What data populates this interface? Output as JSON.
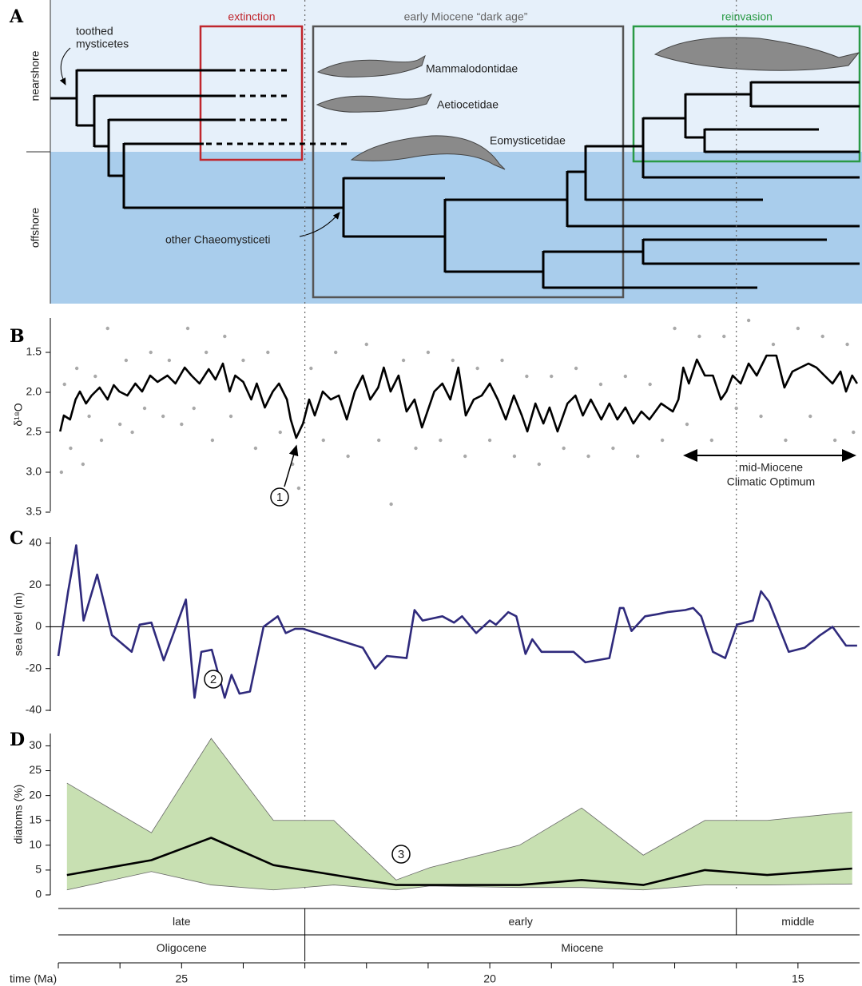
{
  "tree": {
    "label": "A",
    "zones": [
      "nearshore",
      "offshore"
    ],
    "toothed_mysticetes": [
      "toothed",
      "mysticetes"
    ],
    "clades": [
      "Mammalodontidae",
      "Aetiocetidae",
      "Eomysticetidae"
    ],
    "other": "other Chaeomysticeti",
    "boxes": {
      "extinction": "extinction",
      "dark_age": "early Miocene “dark age”",
      "reinvasion": "reinvasion"
    }
  },
  "time_axis": {
    "xlim": [
      27,
      14
    ],
    "xticks": [
      25,
      20,
      15
    ],
    "minor_xticks": [
      27,
      26,
      24,
      23,
      22,
      21,
      19,
      18,
      17,
      16
    ],
    "label": "time (Ma)",
    "stages": [
      {
        "label": "late",
        "range": [
          27,
          23
        ]
      },
      {
        "label": "early",
        "range": [
          23,
          16
        ]
      },
      {
        "label": "middle",
        "range": [
          16,
          14
        ]
      }
    ],
    "epochs": [
      {
        "label": "Oligocene",
        "range": [
          27,
          23
        ]
      },
      {
        "label": "Miocene",
        "range": [
          23,
          14
        ]
      }
    ]
  },
  "chart_data": [
    {
      "type": "scatter",
      "panel_label": "B",
      "y_label": "δ¹⁸O",
      "ylim": [
        1.1,
        3.5
      ],
      "inverted": true,
      "yticks": [
        1.5,
        {
          "value": 2,
          "label": "2.0"
        },
        2.5,
        {
          "value": 3,
          "label": "3.0"
        },
        3.5
      ],
      "annotations": [
        "1"
      ],
      "optimum": [
        "mid-Miocene",
        "Climatic Optimum"
      ],
      "series": [
        {
          "type": "scatter",
          "color": "#a9a9a9",
          "x": [
            26.95,
            26.9,
            26.8,
            26.7,
            26.6,
            26.5,
            26.4,
            26.3,
            26.2,
            26.0,
            25.9,
            25.8,
            25.6,
            25.5,
            25.3,
            25.2,
            25.0,
            24.9,
            24.8,
            24.6,
            24.5,
            24.3,
            24.2,
            24.0,
            23.8,
            23.6,
            23.4,
            23.2,
            23.1,
            22.9,
            22.7,
            22.5,
            22.3,
            22.0,
            21.8,
            21.6,
            21.4,
            21.2,
            21.0,
            20.8,
            20.6,
            20.4,
            20.2,
            20.0,
            19.8,
            19.6,
            19.4,
            19.2,
            19.0,
            18.8,
            18.6,
            18.4,
            18.2,
            18.0,
            17.8,
            17.6,
            17.4,
            17.2,
            17.0,
            16.8,
            16.6,
            16.4,
            16.2,
            16.0,
            15.8,
            15.6,
            15.4,
            15.2,
            15.0,
            14.8,
            14.6,
            14.4,
            14.2,
            14.1
          ],
          "values": [
            3.0,
            1.9,
            2.7,
            1.7,
            2.9,
            2.3,
            1.8,
            2.6,
            1.2,
            2.4,
            1.6,
            2.5,
            2.2,
            1.5,
            2.3,
            1.6,
            2.4,
            1.2,
            2.2,
            1.5,
            2.6,
            1.3,
            2.3,
            1.6,
            2.7,
            1.5,
            2.5,
            2.9,
            3.2,
            1.7,
            2.6,
            1.5,
            2.8,
            1.4,
            2.6,
            3.4,
            1.6,
            2.7,
            1.5,
            2.6,
            1.6,
            2.8,
            1.7,
            2.6,
            1.6,
            2.8,
            1.8,
            2.9,
            1.8,
            2.7,
            1.7,
            2.8,
            1.9,
            2.7,
            1.8,
            2.8,
            1.9,
            2.6,
            1.2,
            2.4,
            1.3,
            2.6,
            1.3,
            2.2,
            1.1,
            2.3,
            1.4,
            2.6,
            1.2,
            2.3,
            1.3,
            2.6,
            1.4,
            2.5
          ]
        },
        {
          "type": "line",
          "color": "#000000",
          "x": [
            26.97,
            26.91,
            26.81,
            26.72,
            26.65,
            26.55,
            26.46,
            26.33,
            26.2,
            26.1,
            26.01,
            25.88,
            25.75,
            25.64,
            25.51,
            25.39,
            25.23,
            25.1,
            24.95,
            24.84,
            24.71,
            24.56,
            24.45,
            24.33,
            24.22,
            24.13,
            24.0,
            23.87,
            23.78,
            23.65,
            23.52,
            23.42,
            23.29,
            23.23,
            23.14,
            23.03,
            22.93,
            22.84,
            22.71,
            22.58,
            22.45,
            22.32,
            22.19,
            22.06,
            21.94,
            21.81,
            21.72,
            21.61,
            21.48,
            21.35,
            21.22,
            21.1,
            20.9,
            20.77,
            20.64,
            20.51,
            20.39,
            20.26,
            20.13,
            20.0,
            19.87,
            19.74,
            19.61,
            19.48,
            19.39,
            19.26,
            19.13,
            19.03,
            18.9,
            18.74,
            18.61,
            18.49,
            18.36,
            18.19,
            18.06,
            17.93,
            17.8,
            17.67,
            17.54,
            17.41,
            17.22,
            17.03,
            16.94,
            16.86,
            16.77,
            16.64,
            16.51,
            16.38,
            16.25,
            16.16,
            16.06,
            15.93,
            15.8,
            15.67,
            15.51,
            15.35,
            15.22,
            15.09,
            14.96,
            14.83,
            14.7,
            14.57,
            14.44,
            14.31,
            14.22,
            14.12,
            14.04
          ],
          "values": [
            2.49,
            2.29,
            2.34,
            2.09,
            1.99,
            2.14,
            2.04,
            1.94,
            2.09,
            1.91,
            1.99,
            2.04,
            1.89,
            1.99,
            1.79,
            1.87,
            1.79,
            1.89,
            1.69,
            1.79,
            1.89,
            1.71,
            1.84,
            1.64,
            1.99,
            1.79,
            1.87,
            2.09,
            1.89,
            2.19,
            1.99,
            1.89,
            2.09,
            2.34,
            2.57,
            2.39,
            2.09,
            2.29,
            1.99,
            2.09,
            2.04,
            2.34,
            1.99,
            1.79,
            2.09,
            1.94,
            1.69,
            1.99,
            1.79,
            2.24,
            2.09,
            2.44,
            1.99,
            1.89,
            2.09,
            1.69,
            2.29,
            2.09,
            2.04,
            1.89,
            2.09,
            2.34,
            2.04,
            2.29,
            2.49,
            2.14,
            2.39,
            2.19,
            2.49,
            2.14,
            2.04,
            2.29,
            2.09,
            2.34,
            2.14,
            2.34,
            2.19,
            2.39,
            2.24,
            2.34,
            2.14,
            2.24,
            2.09,
            1.69,
            1.89,
            1.59,
            1.79,
            1.79,
            2.09,
            1.99,
            1.79,
            1.89,
            1.64,
            1.79,
            1.54,
            1.54,
            1.94,
            1.74,
            1.69,
            1.64,
            1.69,
            1.79,
            1.89,
            1.74,
            1.99,
            1.79,
            1.89
          ]
        }
      ]
    },
    {
      "type": "line",
      "panel_label": "C",
      "y_label": "sea level (m)",
      "ylim": [
        -40,
        43
      ],
      "yticks": [
        40,
        20,
        0,
        -20,
        -40
      ],
      "zero_line": true,
      "annotations": [
        "2"
      ],
      "series": [
        {
          "type": "line",
          "color": "#2f2a7c",
          "x": [
            27.0,
            26.84,
            26.71,
            26.59,
            26.37,
            26.13,
            25.81,
            25.68,
            25.49,
            25.29,
            24.93,
            24.79,
            24.68,
            24.51,
            24.3,
            24.19,
            24.06,
            23.89,
            23.67,
            23.44,
            23.31,
            23.16,
            23.03,
            22.06,
            21.86,
            21.67,
            21.35,
            21.22,
            21.09,
            20.77,
            20.58,
            20.45,
            20.22,
            20.0,
            19.9,
            19.7,
            19.57,
            19.42,
            19.31,
            19.16,
            18.64,
            18.45,
            18.06,
            17.89,
            17.83,
            17.7,
            17.48,
            17.28,
            17.12,
            16.83,
            16.7,
            16.57,
            16.38,
            16.18,
            15.99,
            15.73,
            15.6,
            15.47,
            15.15,
            14.89,
            14.64,
            14.44,
            14.22,
            14.04
          ],
          "values": [
            -14,
            17,
            39,
            3,
            25,
            -4,
            -12,
            1,
            2,
            -16,
            13,
            -34,
            -12,
            -11,
            -34,
            -23,
            -32,
            -31,
            0,
            5,
            -3,
            -1,
            -1,
            -10,
            -20,
            -14,
            -15,
            8,
            3,
            5,
            2,
            5,
            -3,
            3,
            1,
            7,
            5,
            -13,
            -6,
            -12,
            -12,
            -17,
            -15,
            9,
            9,
            -2,
            5,
            6,
            7,
            8,
            9,
            5,
            -12,
            -15,
            1,
            3,
            17,
            12,
            -12,
            -10,
            -4,
            0,
            -9,
            -9
          ]
        }
      ]
    },
    {
      "type": "area",
      "panel_label": "D",
      "y_label": "diatoms (%)",
      "ylim": [
        0,
        32
      ],
      "yticks": [
        0,
        5,
        10,
        15,
        20,
        25,
        30
      ],
      "annotations": [
        "3"
      ],
      "series": [
        {
          "type": "band",
          "color": "#c8e0b2",
          "x": [
            26.86,
            25.49,
            24.52,
            23.51,
            22.53,
            21.52,
            20.97,
            19.52,
            18.51,
            17.51,
            16.51,
            15.5,
            14.12
          ],
          "upper": [
            22.5,
            12.5,
            31.5,
            15,
            15,
            3,
            5.5,
            10,
            17.5,
            8,
            15,
            15,
            16.7
          ],
          "lower": [
            1,
            4.7,
            2,
            1,
            2,
            1,
            1.8,
            1.5,
            1.5,
            1,
            2,
            2,
            2.2
          ]
        },
        {
          "type": "line",
          "color": "#000000",
          "x": [
            26.86,
            25.49,
            24.52,
            23.51,
            21.52,
            20.97,
            19.52,
            18.51,
            17.51,
            16.51,
            15.5,
            14.12
          ],
          "values": [
            4,
            7,
            11.5,
            6,
            2,
            2,
            2,
            3,
            2,
            5,
            4,
            5.3
          ]
        }
      ]
    }
  ]
}
